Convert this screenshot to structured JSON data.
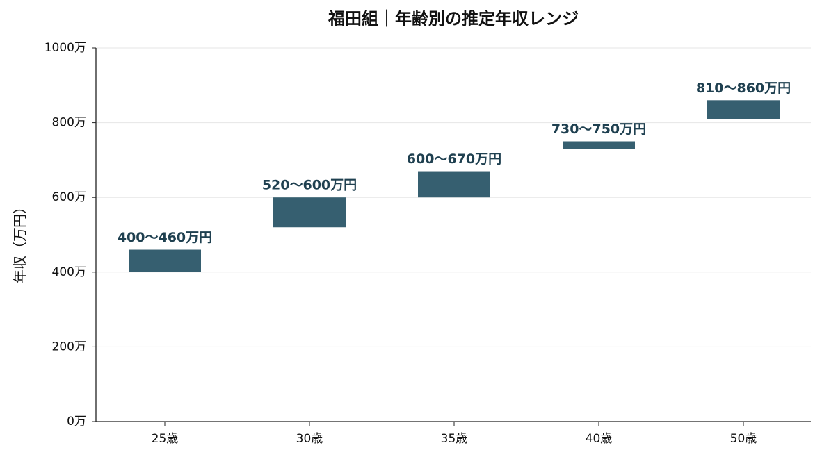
{
  "chart_data": {
    "type": "range-bar",
    "title": "福田組｜年齢別の推定年収レンジ",
    "y_label": "年収（万円）",
    "categories": [
      "25歳",
      "30歳",
      "35歳",
      "40歳",
      "50歳"
    ],
    "low": [
      400,
      520,
      600,
      730,
      810
    ],
    "high": [
      460,
      600,
      670,
      750,
      860
    ],
    "value_labels": [
      "400〜460万円",
      "520〜600万円",
      "600〜670万円",
      "730〜750万円",
      "810〜860万円"
    ],
    "color": "#365f70",
    "label_color": "#1f4050",
    "ylim": [
      0,
      1000
    ],
    "yticks": [
      {
        "value": 0,
        "label": "0万"
      },
      {
        "value": 200,
        "label": "200万"
      },
      {
        "value": 400,
        "label": "400万"
      },
      {
        "value": 600,
        "label": "600万"
      },
      {
        "value": 800,
        "label": "800万"
      },
      {
        "value": 1000,
        "label": "1000万"
      }
    ],
    "grid": true
  }
}
